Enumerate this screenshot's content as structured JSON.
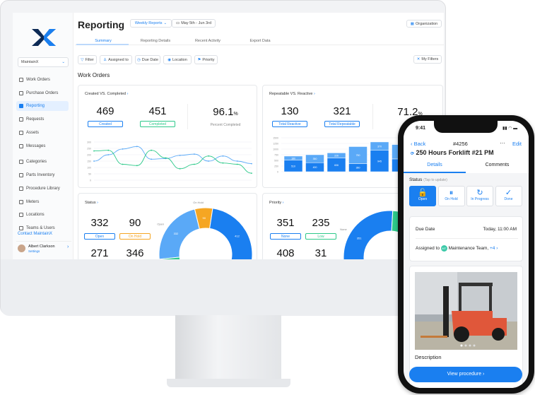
{
  "sidebar": {
    "org": "MaintainX",
    "items": [
      {
        "label": "Work Orders",
        "icon": "inbox-icon"
      },
      {
        "label": "Purchase Orders",
        "icon": "document-icon"
      },
      {
        "label": "Reporting",
        "icon": "bar-chart-icon",
        "active": true
      },
      {
        "label": "Requests",
        "icon": "inbox-icon"
      },
      {
        "label": "Assets",
        "icon": "hierarchy-icon"
      },
      {
        "label": "Messages",
        "icon": "chat-icon"
      },
      {
        "label": "Categories",
        "icon": "tag-icon"
      },
      {
        "label": "Parts Inventory",
        "icon": "gear-icon"
      },
      {
        "label": "Procedure Library",
        "icon": "list-icon"
      },
      {
        "label": "Meters",
        "icon": "gauge-icon"
      },
      {
        "label": "Locations",
        "icon": "pin-icon"
      },
      {
        "label": "Teams & Users",
        "icon": "users-icon"
      }
    ],
    "contact": "Contact MaintainX",
    "user": {
      "name": "Albert Clarkson",
      "settings": "Settings"
    }
  },
  "header": {
    "title": "Reporting",
    "report": "Weekly Reports",
    "date_range": "May 5th - Jun 3rd",
    "organization": "Organization"
  },
  "tabs": [
    "Summary",
    "Reporting Details",
    "Recent Activity",
    "Export Data"
  ],
  "filters": [
    "Filter",
    "Assigned to",
    "Due Date",
    "Location",
    "Priority"
  ],
  "my_filters": "My Filters",
  "section_title": "Work Orders",
  "created_completed": {
    "title": "Created VS. Completed",
    "created": "469",
    "created_label": "Created",
    "completed": "451",
    "completed_label": "Completed",
    "percent": "96.1",
    "percent_unit": "%",
    "percent_label": "Percent Completed"
  },
  "repeatable_reactive": {
    "title": "Repeatable VS. Reactive",
    "reactive": "130",
    "reactive_label": "Total Reactive",
    "repeatable": "321",
    "repeatable_label": "Total Repeatable",
    "percent": "71.2",
    "percent_unit": "%",
    "percent_label": "Total Re"
  },
  "status": {
    "title": "Status",
    "open": "332",
    "open_label": "Open",
    "on_hold": "90",
    "on_hold_label": "On Hold",
    "v3": "271",
    "v4": "346"
  },
  "priority": {
    "title": "Priority",
    "none": "351",
    "none_label": "None",
    "low": "235",
    "low_label": "Low",
    "v3": "408",
    "v4": "31"
  },
  "colors": {
    "accent": "#1a7ff0",
    "light_blue": "#5aa9f7",
    "green": "#2dc98a",
    "orange": "#f5a623"
  },
  "chart_data": [
    {
      "type": "line",
      "ylim": [
        0,
        300
      ],
      "yticks": [
        0,
        50,
        100,
        150,
        200,
        250,
        300
      ],
      "xticks": [
        "",
        "",
        "",
        "",
        "",
        "",
        ""
      ],
      "grid": true,
      "series": [
        {
          "color": "#5aa9f7",
          "values": [
            150,
            200,
            245,
            265,
            165,
            170,
            195,
            205,
            150,
            190,
            150,
            130
          ]
        },
        {
          "color": "#2dc98a",
          "values": [
            230,
            235,
            125,
            115,
            235,
            175,
            90,
            125,
            190,
            135,
            125,
            55
          ]
        }
      ]
    },
    {
      "type": "bar",
      "stacked": true,
      "ylim": [
        0,
        1500
      ],
      "yticks": [
        0,
        250,
        500,
        750,
        1000,
        1250,
        1500
      ],
      "grid": true,
      "series": [
        {
          "color": "#1a7ff0",
          "values": [
            510,
            400,
            606,
            360,
            945,
            565
          ]
        },
        {
          "color": "#5aa9f7",
          "values": [
            180,
            350,
            226,
            750,
            370,
            635
          ]
        }
      ]
    },
    {
      "type": "pie",
      "donut": true,
      "title": "Status",
      "segments": [
        {
          "label": "Open",
          "value": 332,
          "color": "#5aa9f7"
        },
        {
          "label": "On Hold",
          "value": 90,
          "color": "#f5a623"
        },
        {
          "label": "",
          "value": 412,
          "color": "#1a7ff0"
        },
        {
          "label": "",
          "value": 271,
          "color": "#2b6fd6"
        },
        {
          "label": "",
          "value": 346,
          "color": "#2dc98a"
        }
      ]
    },
    {
      "type": "pie",
      "donut": true,
      "title": "Priority",
      "segments": [
        {
          "label": "None",
          "value": 351,
          "color": "#1a7ff0"
        },
        {
          "label": "Low",
          "value": 235,
          "color": "#2dc98a"
        },
        {
          "label": "",
          "value": 408,
          "color": "#f5a623"
        },
        {
          "label": "",
          "value": 31,
          "color": "#e5484d"
        }
      ]
    }
  ],
  "phone": {
    "time": "9:41",
    "back": "Back",
    "wo_number": "#4256",
    "more": "···",
    "edit": "Edit",
    "title": "250 Hours Forklift #21 PM",
    "tabs": [
      "Details",
      "Comments"
    ],
    "status_label": "Status",
    "status_hint": "(Tap to update)",
    "statuses": [
      {
        "label": "Open",
        "icon": "lock-open-icon",
        "glyph": "🔓"
      },
      {
        "label": "On Hold",
        "icon": "pause-icon",
        "glyph": "⏸"
      },
      {
        "label": "In Progress",
        "icon": "refresh-icon",
        "glyph": "↻"
      },
      {
        "label": "Done",
        "icon": "check-icon",
        "glyph": "✓"
      }
    ],
    "due_label": "Due Date",
    "due_value": "Today, 11:00 AM",
    "assigned_label": "Assigned to",
    "team_initials": "MT",
    "team": "Maintenance Team,",
    "team_more": "+4",
    "description": "Description",
    "view_procedure": "View procedure ›"
  }
}
